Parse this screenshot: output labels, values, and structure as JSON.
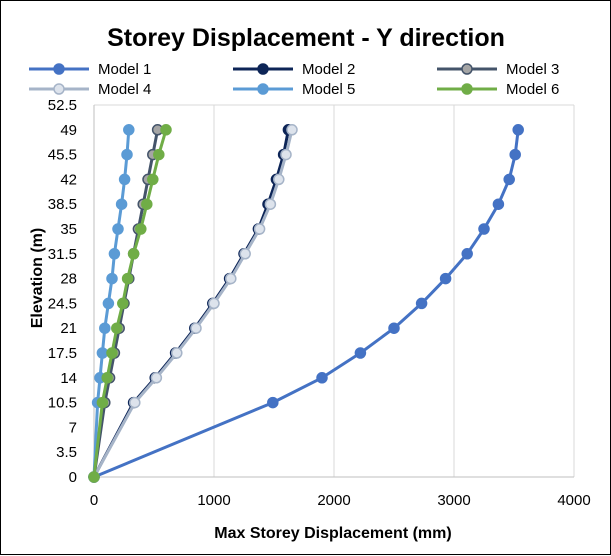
{
  "chart_data": {
    "type": "line",
    "title": "Storey Displacement - Y direction",
    "xlabel": "Max Storey Displacement (mm)",
    "ylabel": "Elevation (m)",
    "xlim": [
      0,
      4000
    ],
    "ylim": [
      0,
      52.5
    ],
    "xticks": [
      0,
      1000,
      2000,
      3000,
      4000
    ],
    "yticks": [
      0,
      3.5,
      7,
      10.5,
      14,
      17.5,
      21,
      24.5,
      28,
      31.5,
      35,
      38.5,
      42,
      45.5,
      49,
      52.5
    ],
    "ytick_labels": [
      "0",
      "3.5",
      "7",
      "10.5",
      "14",
      "17.5",
      "21",
      "24.5",
      "28",
      "31.5",
      "35",
      "38.5",
      "42",
      "45.5",
      "49",
      "52.5"
    ],
    "xtick_labels": [
      "0",
      "1000",
      "2000",
      "3000",
      "4000"
    ],
    "grid": "vertical",
    "legend_position": "top",
    "y": [
      0,
      10.5,
      14,
      17.5,
      21,
      24.5,
      28,
      31.5,
      35,
      38.5,
      42,
      45.5,
      49
    ],
    "series": [
      {
        "name": "Model 1",
        "color": "#4472c4",
        "marker_fill": "#4472c4",
        "x": [
          0,
          1490,
          1900,
          2220,
          2500,
          2730,
          2930,
          3110,
          3250,
          3370,
          3460,
          3510,
          3535
        ]
      },
      {
        "name": "Model 2",
        "color": "#0d2557",
        "marker_fill": "#0d2557",
        "x": [
          0,
          330,
          510,
          680,
          840,
          990,
          1130,
          1250,
          1370,
          1450,
          1520,
          1580,
          1620
        ]
      },
      {
        "name": "Model 3",
        "color": "#44546a",
        "marker_fill": "#a5a5a5",
        "x": [
          0,
          90,
          130,
          170,
          210,
          250,
          290,
          330,
          370,
          410,
          450,
          490,
          530
        ]
      },
      {
        "name": "Model 4",
        "color": "#a6b4c8",
        "marker_fill": "#dde3ec",
        "x": [
          0,
          340,
          520,
          690,
          850,
          1000,
          1140,
          1260,
          1380,
          1470,
          1540,
          1600,
          1650
        ]
      },
      {
        "name": "Model 5",
        "color": "#5b9bd5",
        "marker_fill": "#5b9bd5",
        "x": [
          0,
          30,
          50,
          70,
          90,
          120,
          150,
          170,
          200,
          230,
          255,
          275,
          290
        ]
      },
      {
        "name": "Model 6",
        "color": "#70ad47",
        "marker_fill": "#70ad47",
        "x": [
          0,
          70,
          110,
          150,
          190,
          240,
          280,
          330,
          390,
          440,
          490,
          540,
          600
        ]
      }
    ]
  }
}
